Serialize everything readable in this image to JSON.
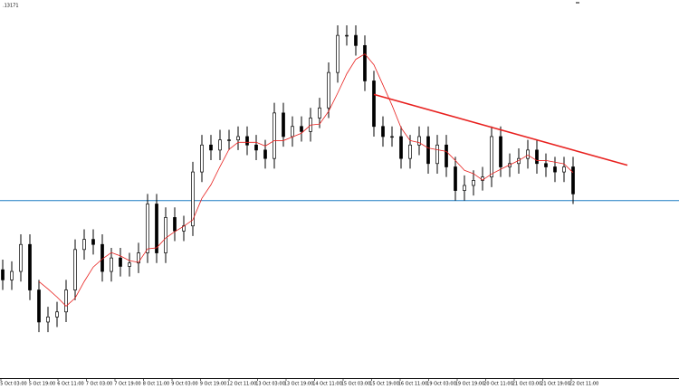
{
  "chart_data": {
    "type": "candlestick",
    "price_label": ".13171",
    "ylim": [
      1.142,
      1.164
    ],
    "open": [
      1.148,
      1.1474,
      1.1479,
      1.1495,
      1.1468,
      1.1449,
      1.1452,
      1.1455,
      1.1468,
      1.1492,
      1.1498,
      1.1495,
      1.1479,
      1.1487,
      1.1482,
      1.1484,
      1.149,
      1.1519,
      1.149,
      1.1511,
      1.1503,
      1.1506,
      1.1538,
      1.1554,
      1.1551,
      1.1557,
      1.1557,
      1.1559,
      1.1554,
      1.1551,
      1.1546,
      1.1573,
      1.1559,
      1.1565,
      1.1562,
      1.157,
      1.1576,
      1.1597,
      1.1619,
      1.1619,
      1.1613,
      1.1592,
      1.1565,
      1.1559,
      1.1559,
      1.1546,
      1.1554,
      1.1559,
      1.1543,
      1.1554,
      1.1541,
      1.1527,
      1.153,
      1.1533,
      1.1535,
      1.1559,
      1.1541,
      1.1543,
      1.1546,
      1.1551,
      1.1543,
      1.1541,
      1.1538,
      1.1541
    ],
    "high": [
      1.1486,
      1.1485,
      1.1501,
      1.1501,
      1.1474,
      1.1458,
      1.1461,
      1.1474,
      1.1498,
      1.1504,
      1.1504,
      1.1501,
      1.1493,
      1.1493,
      1.149,
      1.1496,
      1.1525,
      1.1525,
      1.1517,
      1.1517,
      1.1512,
      1.1544,
      1.156,
      1.156,
      1.1563,
      1.1563,
      1.1565,
      1.1565,
      1.156,
      1.1557,
      1.1579,
      1.1579,
      1.1571,
      1.1571,
      1.1576,
      1.1582,
      1.1603,
      1.1625,
      1.1625,
      1.1625,
      1.1619,
      1.1598,
      1.1571,
      1.1565,
      1.1565,
      1.156,
      1.1565,
      1.1565,
      1.156,
      1.156,
      1.1547,
      1.1536,
      1.1539,
      1.1541,
      1.1565,
      1.1565,
      1.1549,
      1.1552,
      1.1557,
      1.1557,
      1.1549,
      1.1547,
      1.1547,
      1.1547
    ],
    "low": [
      1.1468,
      1.1468,
      1.1473,
      1.1462,
      1.1443,
      1.1443,
      1.1446,
      1.1449,
      1.1462,
      1.1486,
      1.1489,
      1.1473,
      1.1473,
      1.1476,
      1.1476,
      1.1478,
      1.1484,
      1.1484,
      1.1484,
      1.1497,
      1.1497,
      1.15,
      1.1532,
      1.1545,
      1.1545,
      1.1551,
      1.1551,
      1.1548,
      1.1545,
      1.154,
      1.154,
      1.1553,
      1.1553,
      1.1556,
      1.1556,
      1.1564,
      1.157,
      1.1591,
      1.1613,
      1.1607,
      1.1586,
      1.1559,
      1.1553,
      1.1553,
      1.154,
      1.154,
      1.1548,
      1.1537,
      1.1537,
      1.1535,
      1.1521,
      1.1521,
      1.1524,
      1.1527,
      1.1529,
      1.1535,
      1.1535,
      1.1537,
      1.154,
      1.1537,
      1.1535,
      1.1532,
      1.1532,
      1.1519
    ],
    "close": [
      1.1474,
      1.1479,
      1.1495,
      1.1468,
      1.1449,
      1.1452,
      1.1455,
      1.1468,
      1.1492,
      1.1498,
      1.1495,
      1.1479,
      1.1487,
      1.1482,
      1.1484,
      1.149,
      1.1519,
      1.149,
      1.1511,
      1.1503,
      1.1506,
      1.1538,
      1.1554,
      1.1551,
      1.1557,
      1.1557,
      1.1559,
      1.1554,
      1.1551,
      1.1546,
      1.1573,
      1.1559,
      1.1565,
      1.1562,
      1.157,
      1.1576,
      1.1597,
      1.1619,
      1.1619,
      1.1613,
      1.1592,
      1.1565,
      1.1559,
      1.1559,
      1.1546,
      1.1554,
      1.1559,
      1.1543,
      1.1554,
      1.1541,
      1.1527,
      1.153,
      1.1533,
      1.1535,
      1.1559,
      1.1541,
      1.1543,
      1.1546,
      1.1551,
      1.1543,
      1.1541,
      1.1538,
      1.1541,
      1.1525
    ],
    "horizontal_line": {
      "value": 1.1521,
      "color": "#1e7fc4"
    },
    "trendline": {
      "x": [
        41,
        69
      ],
      "y": [
        1.1584,
        1.1542
      ],
      "color": "#e8201e"
    },
    "moving_average_color": "#e8201e",
    "x_labels": [
      "5 Oct 03:00",
      "5 Oct 19:00",
      "6 Oct 11:00",
      "7 Oct 03:00",
      "7 Oct 19:00",
      "8 Oct 11:00",
      "9 Oct 03:00",
      "9 Oct 19:00",
      "12 Oct 11:00",
      "13 Oct 03:00",
      "13 Oct 19:00",
      "14 Oct 11:00",
      "15 Oct 03:00",
      "15 Oct 19:00",
      "16 Oct 11:00",
      "19 Oct 03:00",
      "19 Oct 19:00",
      "20 Oct 11:00",
      "21 Oct 03:00",
      "21 Oct 19:00",
      "22 Oct 11:00"
    ]
  }
}
